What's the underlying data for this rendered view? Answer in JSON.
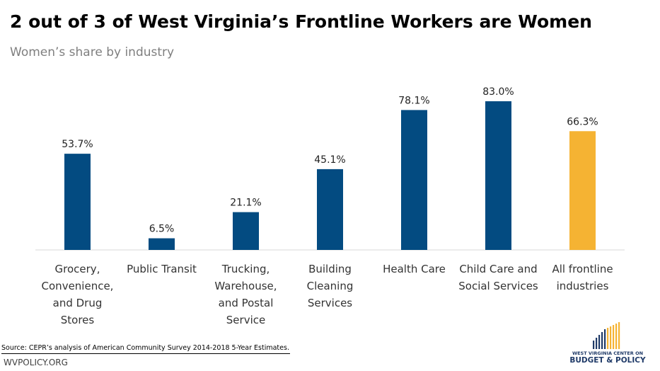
{
  "header": {
    "title": "2 out of 3 of West Virginia’s Frontline Workers are Women",
    "subtitle": "Women’s share by industry"
  },
  "footer": {
    "source": "Source: CEPR’s analysis of American Community Survey 2014-2018 5-Year Estimates.",
    "site": "WVPOLICY.ORG",
    "logo_line1": "WEST VIRGINIA CENTER ON",
    "logo_line2": "BUDGET & POLICY"
  },
  "colors": {
    "bar": "#034b81",
    "highlight": "#f5b333",
    "axis": "#d9d9d9",
    "logo_blue": "#1f3a68",
    "logo_gold": "#f5b333"
  },
  "chart_data": {
    "type": "bar",
    "title": "2 out of 3 of West Virginia’s Frontline Workers are Women",
    "subtitle": "Women’s share by industry",
    "categories": [
      [
        "Grocery,",
        "Convenience,",
        "and Drug",
        "Stores"
      ],
      [
        "Public Transit"
      ],
      [
        "Trucking,",
        "Warehouse,",
        "and Postal",
        "Service"
      ],
      [
        "Building",
        "Cleaning",
        "Services"
      ],
      [
        "Health Care"
      ],
      [
        "Child Care and",
        "Social Services"
      ],
      [
        "All frontline",
        "industries"
      ]
    ],
    "values": [
      53.7,
      6.5,
      21.1,
      45.1,
      78.1,
      83.0,
      66.3
    ],
    "data_labels": [
      "53.7%",
      "6.5%",
      "21.1%",
      "45.1%",
      "78.1%",
      "83.0%",
      "66.3%"
    ],
    "highlight_index": 6,
    "ylim": [
      0,
      100
    ],
    "xlabel": "",
    "ylabel": "",
    "grid": false,
    "legend": "none"
  }
}
